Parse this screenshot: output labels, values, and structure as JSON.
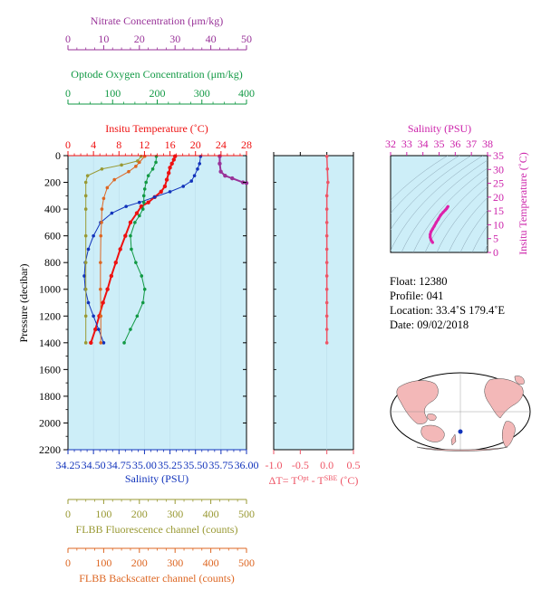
{
  "chart_data": [
    {
      "type": "line",
      "panel": "main-profile",
      "axes": {
        "nitrate": {
          "label": "Nitrate Concentration (μm/kg)",
          "ticks": [
            "0",
            "10",
            "20",
            "30",
            "40",
            "50"
          ],
          "range": [
            0,
            50
          ],
          "color": "#993399"
        },
        "oxygen": {
          "label": "Optode Oxygen Concentration (μm/kg)",
          "ticks": [
            "0",
            "100",
            "200",
            "300",
            "400"
          ],
          "range": [
            0,
            400
          ],
          "color": "#119944"
        },
        "temperature": {
          "label": "Insitu Temperature (˚C)",
          "ticks": [
            "0",
            "4",
            "8",
            "12",
            "16",
            "20",
            "24",
            "28"
          ],
          "range": [
            0,
            28
          ],
          "color": "#ee1111"
        },
        "pressure": {
          "label": "Pressure (decibar)",
          "ticks": [
            "0",
            "200",
            "400",
            "600",
            "800",
            "1000",
            "1200",
            "1400",
            "1600",
            "1800",
            "2000",
            "2200"
          ],
          "range": [
            0,
            2200
          ],
          "color": "#000000"
        },
        "salinity": {
          "label": "Salinity (PSU)",
          "ticks": [
            "34.25",
            "34.50",
            "34.75",
            "35.00",
            "35.25",
            "35.50",
            "35.75",
            "36.00"
          ],
          "range": [
            34.25,
            36.0
          ],
          "color": "#1133bb"
        },
        "fluorescence": {
          "label": "FLBB Fluorescence channel (counts)",
          "ticks": [
            "0",
            "100",
            "200",
            "300",
            "400",
            "500"
          ],
          "range": [
            0,
            500
          ],
          "color": "#999933"
        },
        "backscatter": {
          "label": "FLBB Backscatter channel (counts)",
          "ticks": [
            "0",
            "100",
            "200",
            "300",
            "400",
            "500"
          ],
          "range": [
            0,
            500
          ],
          "color": "#dd6622"
        }
      },
      "series": [
        {
          "key": "temperature",
          "color": "#ee1111",
          "points": [
            [
              16.8,
              5
            ],
            [
              16.6,
              30
            ],
            [
              16.3,
              60
            ],
            [
              16,
              90
            ],
            [
              15.8,
              130
            ],
            [
              15.5,
              180
            ],
            [
              15.2,
              230
            ],
            [
              14.6,
              270
            ],
            [
              13.6,
              310
            ],
            [
              12.6,
              350
            ],
            [
              11.5,
              380
            ],
            [
              10.8,
              430
            ],
            [
              9.8,
              500
            ],
            [
              9,
              600
            ],
            [
              8.2,
              700
            ],
            [
              7.5,
              800
            ],
            [
              6.8,
              900
            ],
            [
              6.2,
              1000
            ],
            [
              5.5,
              1100
            ],
            [
              4.9,
              1200
            ],
            [
              4.3,
              1300
            ],
            [
              3.6,
              1400
            ]
          ]
        },
        {
          "key": "salinity",
          "color": "#1133bb",
          "points": [
            [
              35.55,
              5
            ],
            [
              35.54,
              60
            ],
            [
              35.52,
              100
            ],
            [
              35.49,
              150
            ],
            [
              35.46,
              190
            ],
            [
              35.38,
              230
            ],
            [
              35.25,
              270
            ],
            [
              35.1,
              310
            ],
            [
              34.95,
              350
            ],
            [
              34.82,
              380
            ],
            [
              34.68,
              430
            ],
            [
              34.57,
              500
            ],
            [
              34.5,
              600
            ],
            [
              34.45,
              700
            ],
            [
              34.42,
              800
            ],
            [
              34.41,
              900
            ],
            [
              34.42,
              1000
            ],
            [
              34.45,
              1100
            ],
            [
              34.5,
              1200
            ],
            [
              34.55,
              1300
            ],
            [
              34.6,
              1400
            ]
          ]
        },
        {
          "key": "oxygen",
          "color": "#119944",
          "points": [
            [
              198,
              5
            ],
            [
              197,
              50
            ],
            [
              190,
              100
            ],
            [
              180,
              150
            ],
            [
              175,
              200
            ],
            [
              172,
              250
            ],
            [
              170,
              300
            ],
            [
              170,
              350
            ],
            [
              168,
              400
            ],
            [
              160,
              450
            ],
            [
              150,
              500
            ],
            [
              140,
              600
            ],
            [
              142,
              700
            ],
            [
              152,
              800
            ],
            [
              165,
              900
            ],
            [
              172,
              1000
            ],
            [
              168,
              1100
            ],
            [
              155,
              1200
            ],
            [
              140,
              1300
            ],
            [
              126,
              1400
            ]
          ]
        },
        {
          "key": "nitrate",
          "color": "#993399",
          "points": [
            [
              42.5,
              5
            ],
            [
              42.5,
              60
            ],
            [
              42.8,
              120
            ],
            [
              44,
              150
            ],
            [
              46,
              170
            ],
            [
              49,
              200
            ],
            [
              50,
              205
            ]
          ]
        },
        {
          "key": "fluorescence",
          "color": "#999933",
          "points": [
            [
              205,
              5
            ],
            [
              195,
              40
            ],
            [
              150,
              70
            ],
            [
              95,
              100
            ],
            [
              55,
              150
            ],
            [
              50,
              200
            ],
            [
              50,
              300
            ],
            [
              50,
              400
            ],
            [
              50,
              600
            ],
            [
              50,
              800
            ],
            [
              50,
              1000
            ],
            [
              50,
              1200
            ],
            [
              50,
              1400
            ]
          ]
        },
        {
          "key": "backscatter",
          "color": "#dd6622",
          "points": [
            [
              215,
              5
            ],
            [
              200,
              50
            ],
            [
              190,
              80
            ],
            [
              170,
              120
            ],
            [
              130,
              180
            ],
            [
              110,
              240
            ],
            [
              100,
              320
            ],
            [
              95,
              400
            ],
            [
              94,
              500
            ],
            [
              92,
              600
            ],
            [
              91,
              800
            ],
            [
              91,
              1000
            ],
            [
              92,
              1200
            ],
            [
              92,
              1400
            ]
          ]
        }
      ]
    },
    {
      "type": "line",
      "panel": "temperature-difference",
      "xlabel": "ΔT= Tᴼᵖᵗ - Tˢᴮᴱ (˚C)",
      "xlabel_parts": {
        "prefix": "ΔT= T",
        "sup1": "Opt",
        "mid": " - T",
        "sup2": "SBE",
        "suffix": " (˚C)"
      },
      "ticks": [
        "-1.0",
        "-0.5",
        "0.0",
        "0.5"
      ],
      "range": [
        -1.0,
        0.5
      ],
      "color": "#ee5566",
      "points": [
        [
          0.0,
          5
        ],
        [
          0.01,
          100
        ],
        [
          0.02,
          200
        ],
        [
          0.0,
          300
        ],
        [
          0.0,
          400
        ],
        [
          0.0,
          500
        ],
        [
          0.0,
          600
        ],
        [
          0.0,
          700
        ],
        [
          0.0,
          800
        ],
        [
          0.0,
          900
        ],
        [
          0.0,
          1000
        ],
        [
          0.0,
          1100
        ],
        [
          0.0,
          1200
        ],
        [
          0.0,
          1300
        ],
        [
          0.0,
          1400
        ]
      ]
    },
    {
      "type": "scatter",
      "panel": "ts-diagram",
      "xlabel": "Salinity (PSU)",
      "ylabel": "Insitu Temperature (˚C)",
      "xticks": [
        "32",
        "33",
        "34",
        "35",
        "36",
        "37",
        "38"
      ],
      "yticks": [
        "0",
        "5",
        "10",
        "15",
        "20",
        "25",
        "30",
        "35"
      ],
      "xrange": [
        32,
        38
      ],
      "yrange": [
        0,
        35
      ],
      "color": "#dd22aa",
      "points": [
        [
          34.6,
          3.6
        ],
        [
          34.5,
          4.5
        ],
        [
          34.45,
          5.5
        ],
        [
          34.45,
          6.5
        ],
        [
          34.5,
          7.5
        ],
        [
          34.6,
          8.5
        ],
        [
          34.7,
          9.5
        ],
        [
          34.82,
          10.8
        ],
        [
          34.95,
          12
        ],
        [
          35.1,
          13.5
        ],
        [
          35.25,
          14.5
        ],
        [
          35.38,
          15.3
        ],
        [
          35.46,
          15.8
        ],
        [
          35.5,
          16.2
        ],
        [
          35.55,
          16.6
        ]
      ]
    }
  ],
  "float_info": {
    "float": "Float:  12380",
    "profile": "Profile:  041",
    "location": "Location:  33.4˚S  179.4˚E",
    "date": "Date:  09/02/2018"
  },
  "map": {
    "marker_color": "#1133bb",
    "land_color": "#f3b8b8",
    "ocean_color": "#ffffff"
  }
}
